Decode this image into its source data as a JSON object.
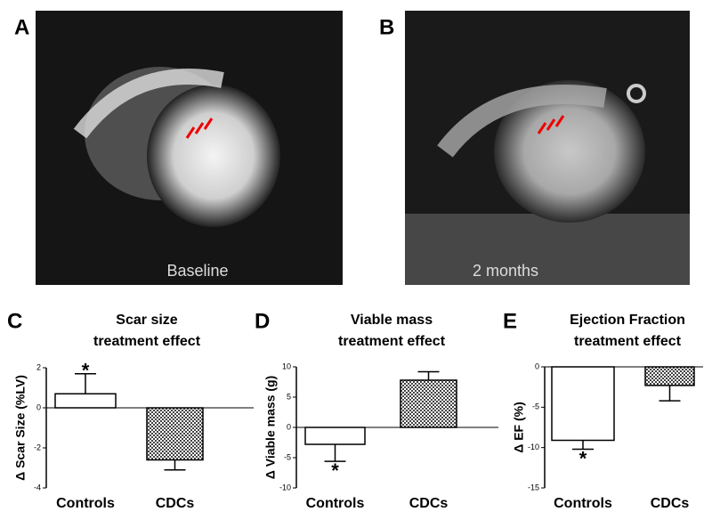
{
  "panels": [
    {
      "label": "A",
      "caption": "Baseline"
    },
    {
      "label": "B",
      "caption": "2 months"
    }
  ],
  "chart_data": [
    {
      "type": "bar",
      "panel_label": "C",
      "title": [
        "Scar size",
        "treatment effect"
      ],
      "ylabel": "Δ Scar Size (%LV)",
      "categories": [
        "Controls",
        "CDCs"
      ],
      "values": [
        0.7,
        -2.6
      ],
      "errors": [
        1.0,
        0.5
      ],
      "colors": [
        "#ffffff",
        "#444444"
      ],
      "patterned": [
        false,
        true
      ],
      "ylim": [
        -4,
        2
      ],
      "yticks": [
        -4,
        -2,
        0,
        2
      ],
      "annotation": "*"
    },
    {
      "type": "bar",
      "panel_label": "D",
      "title": [
        "Viable mass",
        "treatment effect"
      ],
      "ylabel": "Δ Viable mass  (g)",
      "categories": [
        "Controls",
        "CDCs"
      ],
      "values": [
        -2.8,
        7.8
      ],
      "errors": [
        2.8,
        1.4
      ],
      "colors": [
        "#ffffff",
        "#444444"
      ],
      "patterned": [
        false,
        true
      ],
      "ylim": [
        -10,
        10
      ],
      "yticks": [
        -10,
        -5,
        0,
        5,
        10
      ],
      "annotation": "*"
    },
    {
      "type": "bar",
      "panel_label": "E",
      "title": [
        "Ejection Fraction",
        "treatment effect"
      ],
      "ylabel": "Δ EF (%)",
      "categories": [
        "Controls",
        "CDCs"
      ],
      "values": [
        -9.1,
        -2.3
      ],
      "errors": [
        1.1,
        1.9
      ],
      "colors": [
        "#ffffff",
        "#444444"
      ],
      "patterned": [
        false,
        true
      ],
      "ylim": [
        -15,
        0
      ],
      "yticks": [
        -15,
        -10,
        -5,
        0
      ],
      "annotation": "*"
    }
  ]
}
